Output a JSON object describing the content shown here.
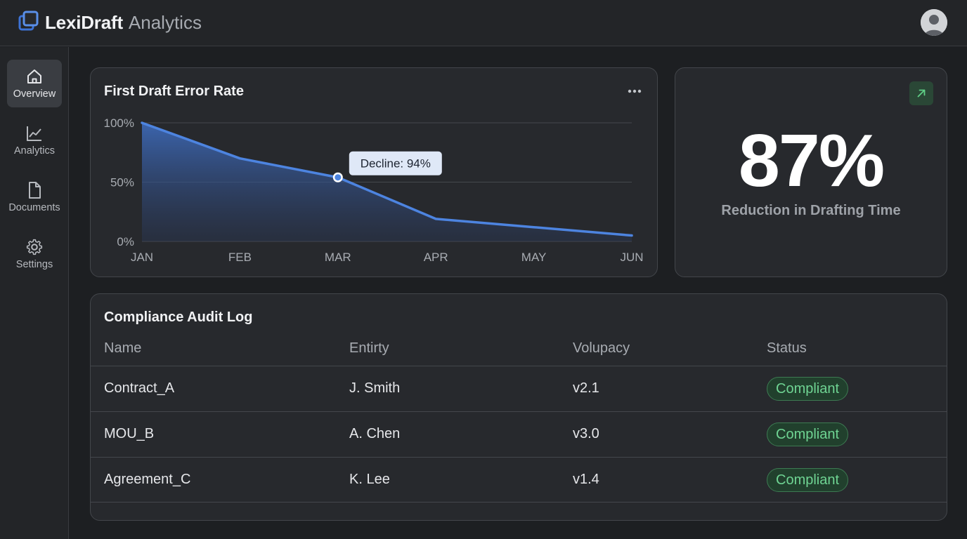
{
  "app": {
    "name": "LexiDraft",
    "subtitle": "Analytics"
  },
  "nav": {
    "items": [
      {
        "label": "Overview",
        "icon": "home-icon",
        "active": true
      },
      {
        "label": "Analytics",
        "icon": "line-chart-icon",
        "active": false
      },
      {
        "label": "Documents",
        "icon": "document-icon",
        "active": false
      },
      {
        "label": "Settings",
        "icon": "gear-icon",
        "active": false
      }
    ]
  },
  "colors": {
    "accent": "#4d84e0",
    "success": "#6fd493",
    "background": "#1d1f22",
    "card": "#27292d"
  },
  "chart_card": {
    "title": "First Draft Error Rate",
    "tooltip": "Decline: 94%"
  },
  "chart_data": {
    "type": "area",
    "title": "First Draft Error Rate",
    "xlabel": "",
    "ylabel": "",
    "x": [
      "JAN",
      "FEB",
      "MAR",
      "APR",
      "MAY",
      "JUN"
    ],
    "series": [
      {
        "values": [
          100,
          70,
          54,
          19,
          12,
          5
        ]
      }
    ],
    "y_ticks": [
      "100%",
      "50%",
      "0%"
    ],
    "ylim": [
      0,
      100
    ],
    "grid": true,
    "highlight": {
      "index": 2,
      "label": "Decline: 94%"
    }
  },
  "kpi": {
    "value": "87%",
    "label": "Reduction in Drafting Time",
    "trend_icon": "arrow-up-right-icon"
  },
  "audit": {
    "title": "Compliance Audit Log",
    "columns": [
      "Name",
      "Entirty",
      "Volupacy",
      "Status"
    ],
    "rows": [
      {
        "name": "Contract_A",
        "entity": "J. Smith",
        "version": "v2.1",
        "status": "Compliant"
      },
      {
        "name": "MOU_B",
        "entity": "A. Chen",
        "version": "v3.0",
        "status": "Compliant"
      },
      {
        "name": "Agreement_C",
        "entity": "K. Lee",
        "version": "v1.4",
        "status": "Compliant"
      }
    ]
  }
}
